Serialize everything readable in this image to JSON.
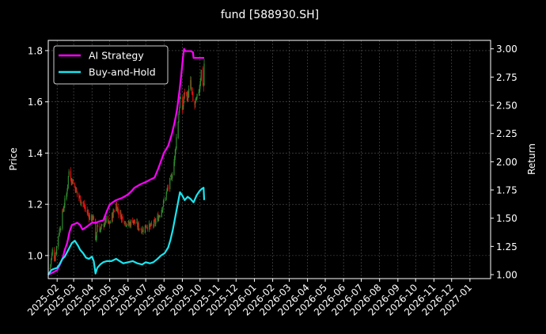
{
  "chart_data": {
    "type": "line",
    "title": "fund [588930.SH]",
    "ylabel_left": "Price",
    "ylabel_right": "Return",
    "background": "#000000",
    "grid": true,
    "legend_position": "top-left",
    "x_tick_labels": [
      "2025-02",
      "2025-03",
      "2025-04",
      "2025-05",
      "2025-06",
      "2025-07",
      "2025-08",
      "2025-09",
      "2025-10",
      "2025-11",
      "2025-12",
      "2026-01",
      "2026-02",
      "2026-03",
      "2026-04",
      "2026-05",
      "2026-06",
      "2026-07",
      "2026-08",
      "2026-09",
      "2026-10",
      "2026-11",
      "2026-12",
      "2027-01"
    ],
    "x_range": [
      "2025-01-17",
      "2027-02-05"
    ],
    "ylim_left": [
      0.91,
      1.84
    ],
    "ylim_right": [
      0.965,
      3.075
    ],
    "y_left_ticks": [
      1.0,
      1.2,
      1.4,
      1.6,
      1.8
    ],
    "y_left_tick_labels": [
      "1.0",
      "1.2",
      "1.4",
      "1.6",
      "1.8"
    ],
    "y_right_ticks": [
      1.0,
      1.25,
      1.5,
      1.75,
      2.0,
      2.25,
      2.5,
      2.75,
      3.0
    ],
    "y_right_tick_labels": [
      "1.00",
      "1.25",
      "1.50",
      "1.75",
      "2.00",
      "2.25",
      "2.50",
      "2.75",
      "3.00"
    ],
    "candle_up_color": "#2e8b2e",
    "candle_down_color": "#e01010",
    "price_anchors": [
      [
        "2025-01-20",
        0.95
      ],
      [
        "2025-01-24",
        1.02
      ],
      [
        "2025-01-28",
        0.99
      ],
      [
        "2025-02-03",
        1.08
      ],
      [
        "2025-02-07",
        1.12
      ],
      [
        "2025-02-12",
        1.19
      ],
      [
        "2025-02-17",
        1.24
      ],
      [
        "2025-02-21",
        1.33
      ],
      [
        "2025-02-25",
        1.3
      ],
      [
        "2025-03-03",
        1.27
      ],
      [
        "2025-03-07",
        1.24
      ],
      [
        "2025-03-12",
        1.22
      ],
      [
        "2025-03-17",
        1.2
      ],
      [
        "2025-03-21",
        1.18
      ],
      [
        "2025-03-26",
        1.16
      ],
      [
        "2025-04-01",
        1.14
      ],
      [
        "2025-04-03",
        1.16
      ],
      [
        "2025-04-07",
        1.05
      ],
      [
        "2025-04-10",
        1.12
      ],
      [
        "2025-04-15",
        1.1
      ],
      [
        "2025-04-20",
        1.12
      ],
      [
        "2025-04-25",
        1.14
      ],
      [
        "2025-04-30",
        1.12
      ],
      [
        "2025-05-06",
        1.16
      ],
      [
        "2025-05-12",
        1.2
      ],
      [
        "2025-05-16",
        1.17
      ],
      [
        "2025-05-22",
        1.15
      ],
      [
        "2025-05-28",
        1.13
      ],
      [
        "2025-06-03",
        1.12
      ],
      [
        "2025-06-09",
        1.14
      ],
      [
        "2025-06-15",
        1.12
      ],
      [
        "2025-06-20",
        1.11
      ],
      [
        "2025-06-26",
        1.1
      ],
      [
        "2025-07-02",
        1.12
      ],
      [
        "2025-07-08",
        1.11
      ],
      [
        "2025-07-14",
        1.12
      ],
      [
        "2025-07-20",
        1.14
      ],
      [
        "2025-07-26",
        1.17
      ],
      [
        "2025-08-01",
        1.21
      ],
      [
        "2025-08-07",
        1.26
      ],
      [
        "2025-08-13",
        1.3
      ],
      [
        "2025-08-19",
        1.38
      ],
      [
        "2025-08-22",
        1.46
      ],
      [
        "2025-08-25",
        1.53
      ],
      [
        "2025-08-28",
        1.61
      ],
      [
        "2025-09-01",
        1.57
      ],
      [
        "2025-09-05",
        1.64
      ],
      [
        "2025-09-10",
        1.62
      ],
      [
        "2025-09-15",
        1.67
      ],
      [
        "2025-09-20",
        1.58
      ],
      [
        "2025-09-25",
        1.6
      ],
      [
        "2025-09-30",
        1.66
      ],
      [
        "2025-10-03",
        1.72
      ],
      [
        "2025-10-07",
        1.66
      ],
      [
        "2025-10-08",
        1.75
      ]
    ],
    "series": [
      {
        "name": "AI Strategy",
        "color": "#ff00ff",
        "points": [
          [
            "2025-01-17",
            1.0
          ],
          [
            "2025-01-25",
            1.02
          ],
          [
            "2025-02-01",
            1.04
          ],
          [
            "2025-02-05",
            1.08
          ],
          [
            "2025-02-10",
            1.14
          ],
          [
            "2025-02-14",
            1.22
          ],
          [
            "2025-02-18",
            1.28
          ],
          [
            "2025-02-22",
            1.38
          ],
          [
            "2025-02-26",
            1.44
          ],
          [
            "2025-03-03",
            1.45
          ],
          [
            "2025-03-07",
            1.46
          ],
          [
            "2025-03-12",
            1.44
          ],
          [
            "2025-03-16",
            1.4
          ],
          [
            "2025-03-22",
            1.42
          ],
          [
            "2025-03-27",
            1.44
          ],
          [
            "2025-04-01",
            1.46
          ],
          [
            "2025-04-08",
            1.46
          ],
          [
            "2025-04-12",
            1.47
          ],
          [
            "2025-04-20",
            1.48
          ],
          [
            "2025-04-26",
            1.56
          ],
          [
            "2025-05-01",
            1.62
          ],
          [
            "2025-05-06",
            1.64
          ],
          [
            "2025-05-12",
            1.66
          ],
          [
            "2025-05-22",
            1.68
          ],
          [
            "2025-06-01",
            1.71
          ],
          [
            "2025-06-07",
            1.74
          ],
          [
            "2025-06-12",
            1.77
          ],
          [
            "2025-06-22",
            1.8
          ],
          [
            "2025-07-01",
            1.82
          ],
          [
            "2025-07-08",
            1.84
          ],
          [
            "2025-07-16",
            1.86
          ],
          [
            "2025-07-23",
            1.95
          ],
          [
            "2025-08-01",
            2.08
          ],
          [
            "2025-08-08",
            2.14
          ],
          [
            "2025-08-14",
            2.24
          ],
          [
            "2025-08-19",
            2.35
          ],
          [
            "2025-08-23",
            2.46
          ],
          [
            "2025-08-27",
            2.62
          ],
          [
            "2025-08-30",
            2.76
          ],
          [
            "2025-09-02",
            2.92
          ],
          [
            "2025-09-04",
            3.0
          ],
          [
            "2025-09-06",
            2.98
          ],
          [
            "2025-09-15",
            2.98
          ],
          [
            "2025-09-19",
            2.97
          ],
          [
            "2025-09-20",
            2.92
          ],
          [
            "2025-10-08",
            2.92
          ]
        ]
      },
      {
        "name": "Buy-and-Hold",
        "color": "#19e6f0",
        "points": [
          [
            "2025-01-17",
            1.0
          ],
          [
            "2025-01-22",
            1.04
          ],
          [
            "2025-01-26",
            1.05
          ],
          [
            "2025-02-01",
            1.06
          ],
          [
            "2025-02-05",
            1.09
          ],
          [
            "2025-02-10",
            1.14
          ],
          [
            "2025-02-14",
            1.16
          ],
          [
            "2025-02-18",
            1.2
          ],
          [
            "2025-02-22",
            1.24
          ],
          [
            "2025-02-26",
            1.28
          ],
          [
            "2025-03-03",
            1.3
          ],
          [
            "2025-03-08",
            1.26
          ],
          [
            "2025-03-12",
            1.22
          ],
          [
            "2025-03-17",
            1.19
          ],
          [
            "2025-03-22",
            1.15
          ],
          [
            "2025-03-27",
            1.14
          ],
          [
            "2025-04-01",
            1.16
          ],
          [
            "2025-04-04",
            1.12
          ],
          [
            "2025-04-07",
            1.01
          ],
          [
            "2025-04-10",
            1.06
          ],
          [
            "2025-04-15",
            1.09
          ],
          [
            "2025-04-20",
            1.11
          ],
          [
            "2025-04-26",
            1.12
          ],
          [
            "2025-05-04",
            1.12
          ],
          [
            "2025-05-12",
            1.14
          ],
          [
            "2025-05-18",
            1.12
          ],
          [
            "2025-05-24",
            1.1
          ],
          [
            "2025-06-01",
            1.11
          ],
          [
            "2025-06-09",
            1.12
          ],
          [
            "2025-06-17",
            1.1
          ],
          [
            "2025-06-25",
            1.09
          ],
          [
            "2025-07-01",
            1.11
          ],
          [
            "2025-07-08",
            1.1
          ],
          [
            "2025-07-14",
            1.11
          ],
          [
            "2025-07-21",
            1.14
          ],
          [
            "2025-07-27",
            1.17
          ],
          [
            "2025-08-02",
            1.19
          ],
          [
            "2025-08-08",
            1.24
          ],
          [
            "2025-08-12",
            1.31
          ],
          [
            "2025-08-16",
            1.4
          ],
          [
            "2025-08-20",
            1.51
          ],
          [
            "2025-08-24",
            1.62
          ],
          [
            "2025-08-28",
            1.73
          ],
          [
            "2025-09-01",
            1.7
          ],
          [
            "2025-09-05",
            1.66
          ],
          [
            "2025-09-10",
            1.69
          ],
          [
            "2025-09-15",
            1.67
          ],
          [
            "2025-09-20",
            1.64
          ],
          [
            "2025-09-25",
            1.7
          ],
          [
            "2025-09-30",
            1.74
          ],
          [
            "2025-10-04",
            1.76
          ],
          [
            "2025-10-07",
            1.77
          ],
          [
            "2025-10-08",
            1.66
          ]
        ]
      }
    ]
  }
}
